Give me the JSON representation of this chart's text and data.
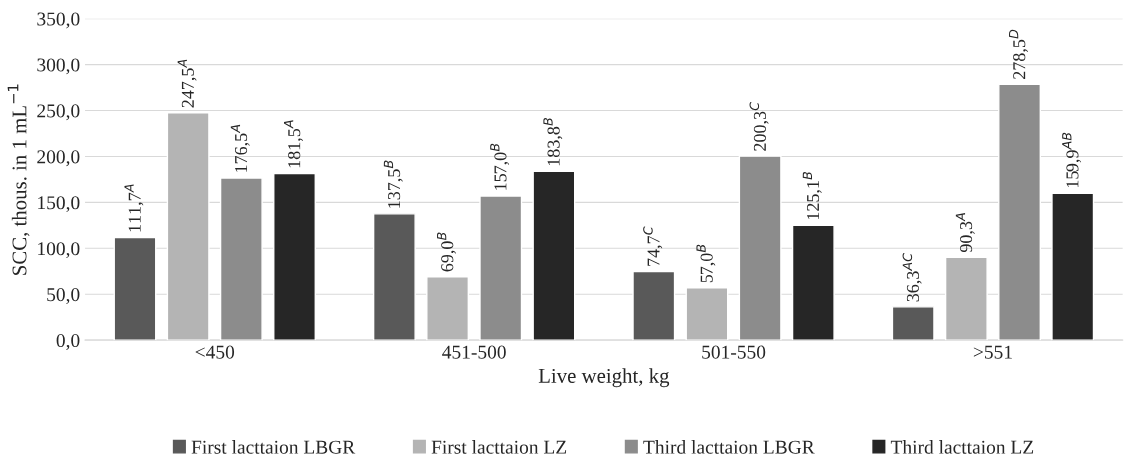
{
  "chart_data": {
    "type": "bar",
    "xlabel": "Live weight, kg",
    "ylabel": "SCC, thous. in 1 mL$^{−1}$",
    "categories": [
      "<450",
      "451-500",
      "501-550",
      ">551"
    ],
    "series": [
      {
        "name": "First lacttaion LBGR",
        "color": "#595959",
        "values": [
          111.7,
          137.5,
          74.7,
          36.3
        ],
        "value_labels": [
          "111,7$^{A}$",
          "137,5$^{B}$",
          "74,7$^{C}$",
          "36,3$^{AC}$"
        ]
      },
      {
        "name": "First lacttaion LZ",
        "color": "#b4b4b4",
        "values": [
          247.5,
          69.0,
          57.0,
          90.3
        ],
        "value_labels": [
          "247,5$^{A}$",
          "69,0$^{B}$",
          "57,0$^{B}$",
          "90,3$^{A}$"
        ]
      },
      {
        "name": "Third lacttaion LBGR",
        "color": "#8c8c8c",
        "values": [
          176.5,
          157.0,
          200.3,
          278.5
        ],
        "value_labels": [
          "176,5$^{A}$",
          "157,0$^{B}$",
          "200,3$^{C}$",
          "278,5$^{D}$"
        ]
      },
      {
        "name": "Third lacttaion LZ",
        "color": "#262626",
        "values": [
          181.5,
          183.8,
          125.1,
          159.9
        ],
        "value_labels": [
          "181,5$^{A}$",
          "183,8$^{B}$",
          "125,1$^{B}$",
          "159,9$^{AB}$"
        ]
      }
    ],
    "ylim": [
      0,
      350
    ],
    "yticks": [
      {
        "value": 0,
        "label": "0,0"
      },
      {
        "value": 50,
        "label": "50,0"
      },
      {
        "value": 100,
        "label": "100,0"
      },
      {
        "value": 150,
        "label": "150,0"
      },
      {
        "value": 200,
        "label": "200,0"
      },
      {
        "value": 250,
        "label": "250,0"
      },
      {
        "value": 300,
        "label": "300,0"
      },
      {
        "value": 350,
        "label": "350,0"
      }
    ],
    "grid": "y",
    "legend": "bottom"
  }
}
